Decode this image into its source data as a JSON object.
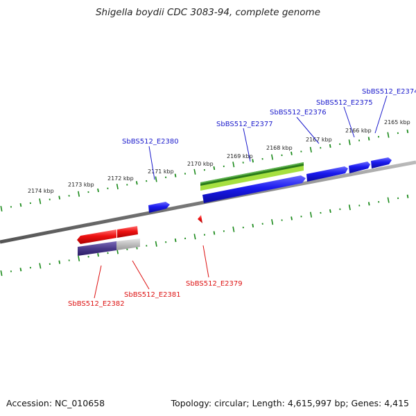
{
  "title": "Shigella boydii CDC 3083-94, complete genome",
  "footer": {
    "accession": "Accession: NC_010658",
    "summary": "Topology: circular; Length: 4,615,997 bp; Genes: 4,415"
  },
  "scale_labels": [
    "2165 kbp",
    "2166 kbp",
    "2167 kbp",
    "2168 kbp",
    "2169 kbp",
    "2170 kbp",
    "2171 kbp",
    "2172 kbp",
    "2173 kbp",
    "2174 kbp"
  ],
  "gene_labels": {
    "E2374": "SbBS512_E2374",
    "E2375": "SbBS512_E2375",
    "E2376": "SbBS512_E2376",
    "E2377": "SbBS512_E2377",
    "E2380": "SbBS512_E2380",
    "E2379": "SbBS512_E2379",
    "E2381": "SbBS512_E2381",
    "E2382": "SbBS512_E2382"
  },
  "colors": {
    "forward_gene": "#1a1aee",
    "reverse_gene": "#ee1111",
    "rna_dark": "#2a8a1a",
    "rna_light": "#9ad63a",
    "pseudo_purple": "#4a3a8a",
    "pseudo_grey": "#bbbbbb",
    "backbone": "#808080",
    "ticks": "#1a8a1a"
  }
}
